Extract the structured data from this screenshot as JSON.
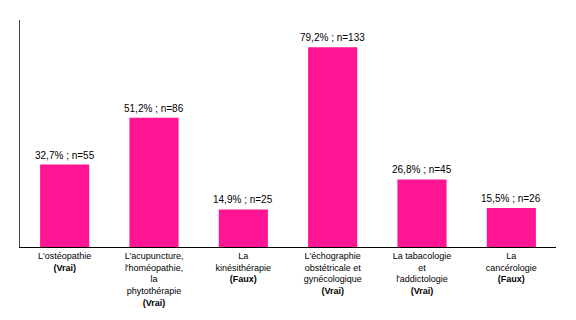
{
  "chart_data": {
    "type": "bar",
    "categories": [
      "L'ostéopathie",
      "L'acupuncture,\nl'homéopathie,\nla\nphytothérapie",
      "La\nkinésithérapie",
      "L'échographie\nobstétricale et\ngynécologique",
      "La tabacologie\net\nl'addictologie",
      "La\ncancérologie"
    ],
    "annotations": [
      "(Vrai)",
      "(Vrai)",
      "(Faux)",
      "(Vrai)",
      "(Vrai)",
      "(Faux)"
    ],
    "values": [
      32.7,
      51.2,
      14.9,
      79.2,
      26.8,
      15.5
    ],
    "value_labels": [
      "32,7% ; n=55",
      "51,2% ; n=86",
      "14,9% ; n=25",
      "79,2% ; n=133",
      "26,8% ; n=45",
      "15,5% ; n=26"
    ],
    "color": "#FF1493",
    "ylim": [
      0,
      90
    ],
    "grid": false,
    "data_labels": true,
    "tick_labels": "x"
  }
}
